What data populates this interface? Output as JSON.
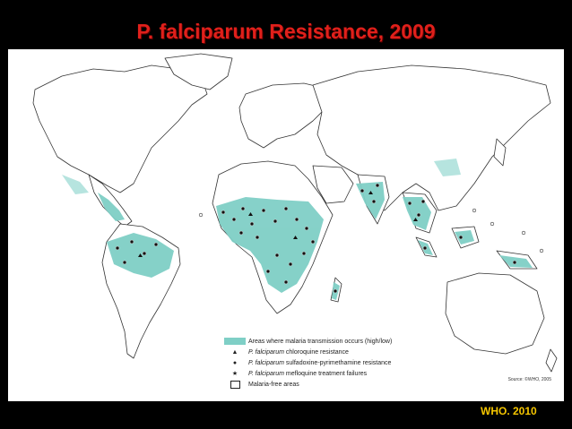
{
  "title": "P. falciparum Resistance, 2009",
  "legend": {
    "areas": "Areas where malaria transmission occurs (high/low)",
    "chloroquine": {
      "species": "P. falciparum",
      "rest": "chloroquine resistance"
    },
    "sp": {
      "species": "P. falciparum",
      "rest": "sulfadoxine-pyrimethamine resistance"
    },
    "mefloquine": {
      "species": "P. falciparum",
      "rest": "mefloquine treatment failures"
    },
    "free": "Malaria-free areas"
  },
  "source": "Source: ©WHO, 2005",
  "credit": "WHO. 2010",
  "colors": {
    "transmission": "#7fcfc6",
    "background": "#000000",
    "title": "#E0201B",
    "credit": "#F6C600"
  }
}
